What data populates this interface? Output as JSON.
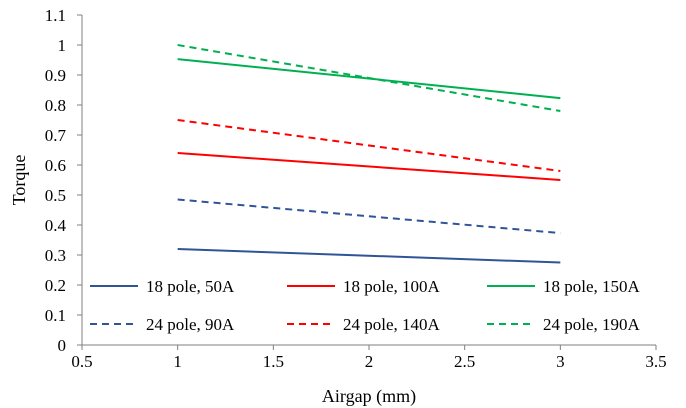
{
  "chart_data": {
    "type": "line",
    "title": "",
    "xlabel": "Airgap (mm)",
    "ylabel": "Torque",
    "xlim": [
      0.5,
      3.5
    ],
    "ylim": [
      0,
      1.1
    ],
    "xticks": [
      0.5,
      1,
      1.5,
      2,
      2.5,
      3,
      3.5
    ],
    "xtick_labels": [
      "0.5",
      "1",
      "1.5",
      "2",
      "2.5",
      "3",
      "3.5"
    ],
    "yticks": [
      0,
      0.1,
      0.2,
      0.3,
      0.4,
      0.5,
      0.6,
      0.7,
      0.8,
      0.9,
      1,
      1.1
    ],
    "ytick_labels": [
      "0",
      "0.1",
      "0.2",
      "0.3",
      "0.4",
      "0.5",
      "0.6",
      "0.7",
      "0.8",
      "0.9",
      "1",
      "1.1"
    ],
    "grid": false,
    "legend_position": "bottom-inside",
    "series": [
      {
        "name": "18 pole, 50A",
        "color": "#2F5597",
        "dash": "solid",
        "x": [
          1,
          3
        ],
        "y": [
          0.32,
          0.275
        ]
      },
      {
        "name": "18 pole, 100A",
        "color": "#FF0000",
        "dash": "solid",
        "x": [
          1,
          3
        ],
        "y": [
          0.64,
          0.55
        ]
      },
      {
        "name": "18 pole, 150A",
        "color": "#00B050",
        "dash": "solid",
        "x": [
          1,
          3
        ],
        "y": [
          0.953,
          0.823
        ]
      },
      {
        "name": "24 pole, 90A",
        "color": "#2F5597",
        "dash": "dashed",
        "x": [
          1,
          3
        ],
        "y": [
          0.485,
          0.373
        ]
      },
      {
        "name": "24 pole, 140A",
        "color": "#FF0000",
        "dash": "dashed",
        "x": [
          1,
          3
        ],
        "y": [
          0.75,
          0.58
        ]
      },
      {
        "name": "24 pole, 190A",
        "color": "#00B050",
        "dash": "dashed",
        "x": [
          1,
          3
        ],
        "y": [
          1.0,
          0.78
        ]
      }
    ]
  }
}
